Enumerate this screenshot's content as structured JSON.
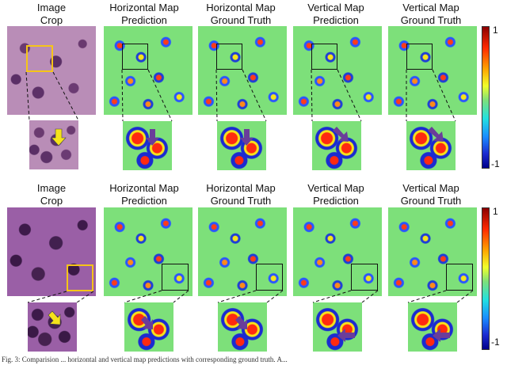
{
  "row1_titles": {
    "col1": [
      "Image",
      "Crop"
    ],
    "col2": [
      "Horizontal Map",
      "Prediction"
    ],
    "col3": [
      "Horizontal Map",
      "Ground Truth"
    ],
    "col4": [
      "Vertical Map",
      "Prediction"
    ],
    "col5": [
      "Vertical Map",
      "Ground Truth"
    ]
  },
  "row2_titles": {
    "col1": [
      "Image",
      "Crop"
    ],
    "col2": [
      "Horizontal Map",
      "Prediction"
    ],
    "col3": [
      "Horizontal Map",
      "Ground Truth"
    ],
    "col4": [
      "Vertical Map",
      "Prediction"
    ],
    "col5": [
      "Vertical Map",
      "Ground Truth"
    ]
  },
  "colorbar": {
    "top_label": "1",
    "bottom_label": "-1"
  },
  "caption": "Fig. 3: Comparision ... horizontal and vertical map predictions with corresponding ground truth. A...",
  "colors": {
    "selection_yellow": "#f5c518",
    "arrow_yellow": "#f5e21a",
    "arrow_purple": "#6a3d9a",
    "map_background": "#7de07a"
  }
}
